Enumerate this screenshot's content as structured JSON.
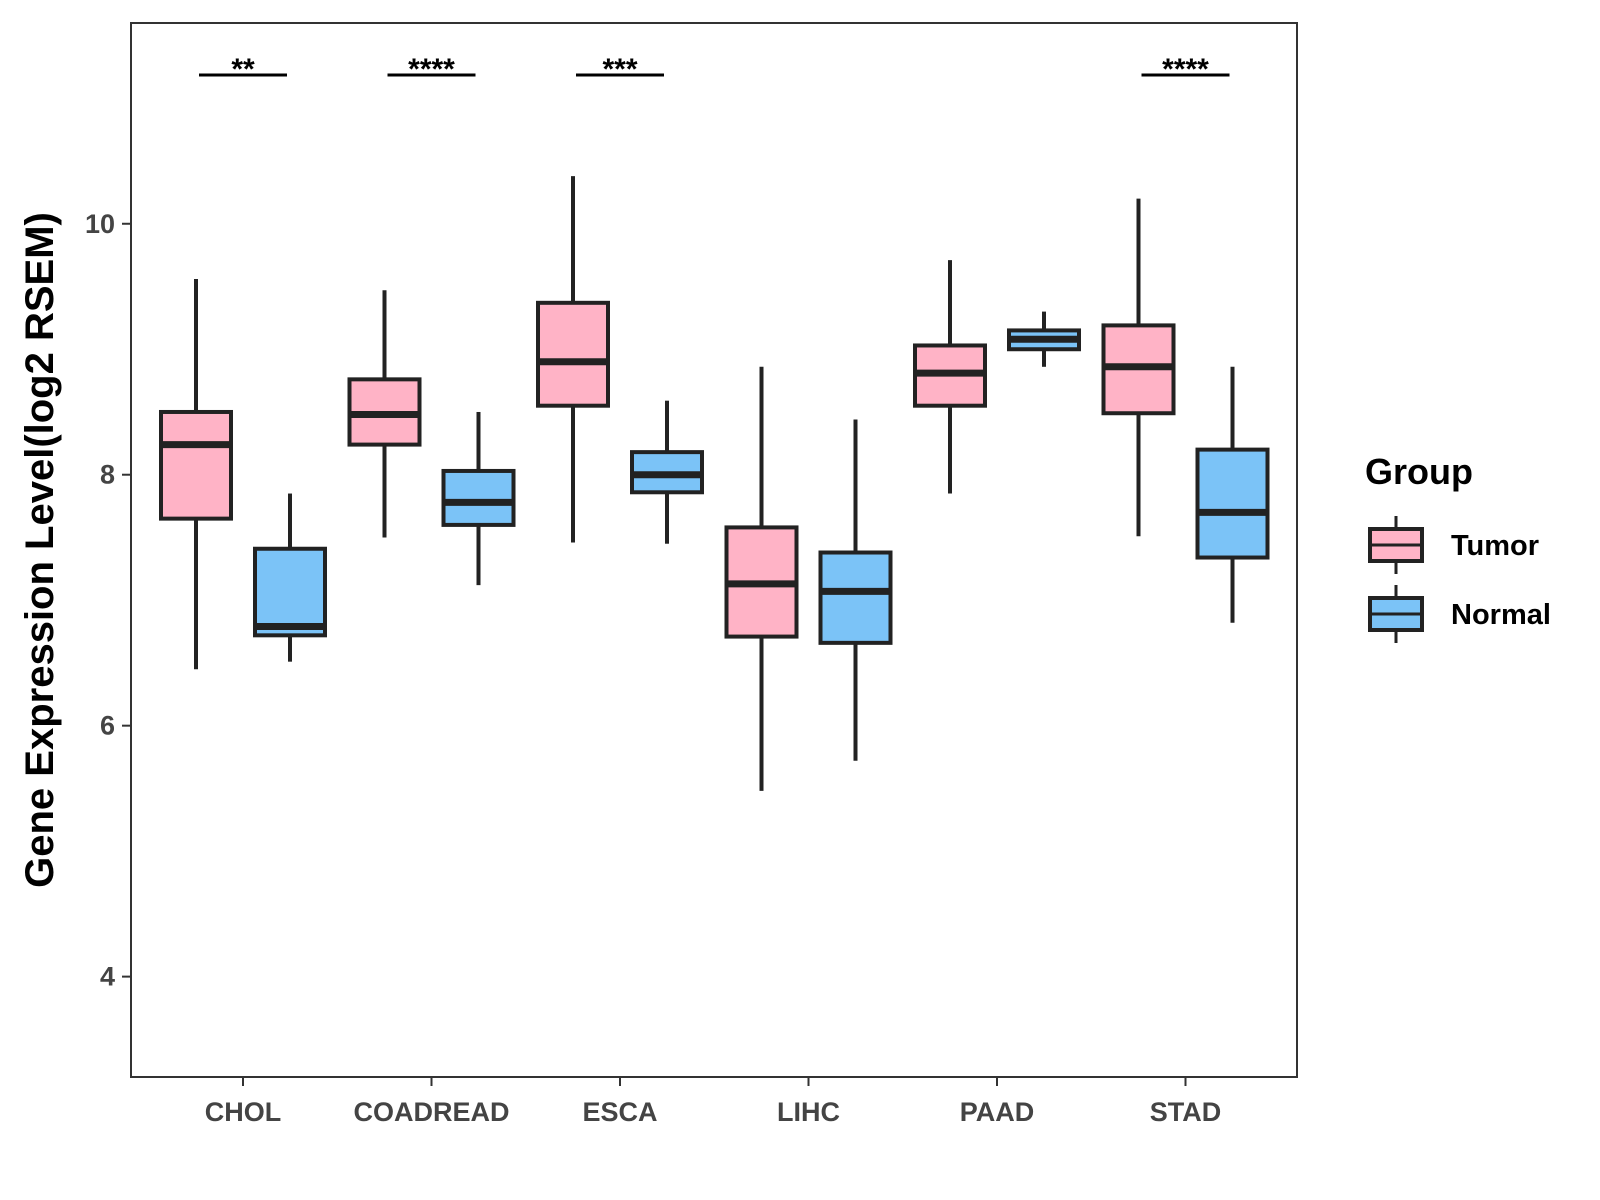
{
  "chart_data": {
    "type": "boxplot",
    "title": "",
    "xlabel": "",
    "ylabel": "Gene Expression Level(log2 RSEM)",
    "ylim": [
      3.2,
      11.6
    ],
    "yticks": [
      4,
      6,
      8,
      10
    ],
    "grid": false,
    "categories": [
      "CHOL",
      "COADREAD",
      "ESCA",
      "LIHC",
      "PAAD",
      "STAD"
    ],
    "series": [
      {
        "name": "Tumor",
        "color": "#FFB3C6",
        "boxes": [
          {
            "min": 6.45,
            "q1": 7.65,
            "median": 8.24,
            "q3": 8.5,
            "max": 9.56
          },
          {
            "min": 7.5,
            "q1": 8.24,
            "median": 8.48,
            "q3": 8.76,
            "max": 9.47
          },
          {
            "min": 7.46,
            "q1": 8.55,
            "median": 8.9,
            "q3": 9.37,
            "max": 10.38
          },
          {
            "min": 5.48,
            "q1": 6.71,
            "median": 7.13,
            "q3": 7.58,
            "max": 8.86
          },
          {
            "min": 7.85,
            "q1": 8.55,
            "median": 8.81,
            "q3": 9.03,
            "max": 9.71
          },
          {
            "min": 7.51,
            "q1": 8.49,
            "median": 8.86,
            "q3": 9.19,
            "max": 10.2
          }
        ]
      },
      {
        "name": "Normal",
        "color": "#7BC3F7",
        "boxes": [
          {
            "min": 6.51,
            "q1": 6.72,
            "median": 6.79,
            "q3": 7.41,
            "max": 7.85
          },
          {
            "min": 7.12,
            "q1": 7.6,
            "median": 7.78,
            "q3": 8.03,
            "max": 8.5
          },
          {
            "min": 7.45,
            "q1": 7.86,
            "median": 8.0,
            "q3": 8.18,
            "max": 8.59
          },
          {
            "min": 5.72,
            "q1": 6.66,
            "median": 7.07,
            "q3": 7.38,
            "max": 8.44
          },
          {
            "min": 8.86,
            "q1": 9.0,
            "median": 9.08,
            "q3": 9.15,
            "max": 9.3
          },
          {
            "min": 6.82,
            "q1": 7.34,
            "median": 7.7,
            "q3": 8.2,
            "max": 8.86
          }
        ]
      }
    ],
    "significance": [
      {
        "category": "CHOL",
        "label": "**"
      },
      {
        "category": "COADREAD",
        "label": "****"
      },
      {
        "category": "ESCA",
        "label": "***"
      },
      {
        "category": "STAD",
        "label": "****"
      }
    ],
    "legend": {
      "title": "Group",
      "position": "right",
      "items": [
        "Tumor",
        "Normal"
      ]
    }
  }
}
